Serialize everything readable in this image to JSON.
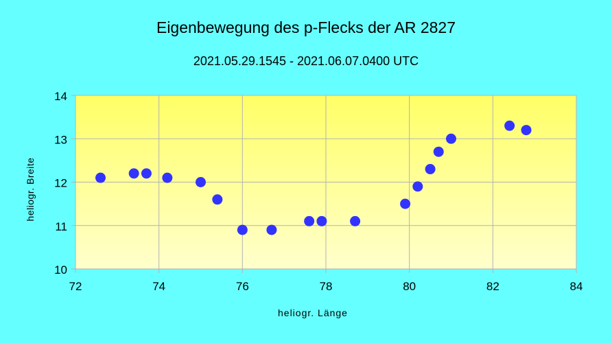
{
  "chart_data": {
    "type": "scatter",
    "title": "Eigenbewegung des p-Flecks der AR 2827",
    "subtitle": "2021.05.29.1545 - 2021.06.07.0400 UTC",
    "xlabel": "heliogr. Länge",
    "ylabel": "heliogr. Breite",
    "xlim": [
      72,
      84
    ],
    "ylim": [
      10,
      14
    ],
    "xticks": [
      72,
      74,
      76,
      78,
      80,
      82,
      84
    ],
    "yticks": [
      10,
      11,
      12,
      13,
      14
    ],
    "grid": true,
    "legend": null,
    "series": [
      {
        "name": "p-Fleck",
        "color": "#3333ff",
        "points": [
          [
            72.6,
            12.1
          ],
          [
            73.4,
            12.2
          ],
          [
            73.7,
            12.2
          ],
          [
            74.2,
            12.1
          ],
          [
            75.0,
            12.0
          ],
          [
            75.4,
            11.6
          ],
          [
            76.0,
            10.9
          ],
          [
            76.7,
            10.9
          ],
          [
            77.6,
            11.1
          ],
          [
            77.9,
            11.1
          ],
          [
            78.7,
            11.1
          ],
          [
            79.9,
            11.5
          ],
          [
            80.2,
            11.9
          ],
          [
            80.5,
            12.3
          ],
          [
            80.7,
            12.7
          ],
          [
            81.0,
            13.0
          ],
          [
            82.4,
            13.3
          ],
          [
            82.8,
            13.2
          ]
        ]
      }
    ]
  },
  "colors": {
    "background": "#66ffff",
    "plot_top": "#ffff66",
    "plot_bottom": "#ffffcc",
    "grid": "#b3b3b3",
    "marker": "#3333ff"
  }
}
